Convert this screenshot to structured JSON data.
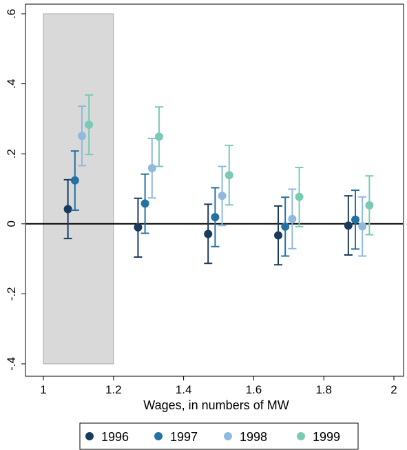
{
  "chart_data": {
    "type": "scatter",
    "title": "",
    "xlabel": "Wages, in numbers of MW",
    "ylabel": "",
    "xlim": [
      1,
      2
    ],
    "ylim": [
      -0.4,
      0.6
    ],
    "x_ticks": [
      "1",
      "1.2",
      "1.4",
      "1.6",
      "1.8",
      "2"
    ],
    "y_ticks": [
      "-.4",
      "-.2",
      "0",
      ".2",
      ".4",
      ".6"
    ],
    "shaded_region": {
      "x": [
        1,
        1.2
      ],
      "color": "#d9d9d9"
    },
    "reference_line": {
      "y": 0
    },
    "legend_position": "bottom",
    "error_bars": true,
    "series": [
      {
        "name": "1996",
        "color": "#1a3b5c",
        "points": [
          {
            "x": 1.07,
            "y": 0.042,
            "lo": -0.042,
            "hi": 0.126
          },
          {
            "x": 1.27,
            "y": -0.01,
            "lo": -0.095,
            "hi": 0.073
          },
          {
            "x": 1.47,
            "y": -0.029,
            "lo": -0.113,
            "hi": 0.056
          },
          {
            "x": 1.67,
            "y": -0.033,
            "lo": -0.117,
            "hi": 0.051
          },
          {
            "x": 1.87,
            "y": -0.005,
            "lo": -0.089,
            "hi": 0.08
          }
        ]
      },
      {
        "name": "1997",
        "color": "#2471a3",
        "points": [
          {
            "x": 1.09,
            "y": 0.124,
            "lo": 0.039,
            "hi": 0.208
          },
          {
            "x": 1.29,
            "y": 0.058,
            "lo": -0.027,
            "hi": 0.142
          },
          {
            "x": 1.49,
            "y": 0.019,
            "lo": -0.065,
            "hi": 0.103
          },
          {
            "x": 1.69,
            "y": -0.008,
            "lo": -0.092,
            "hi": 0.076
          },
          {
            "x": 1.89,
            "y": 0.012,
            "lo": -0.072,
            "hi": 0.096
          }
        ]
      },
      {
        "name": "1998",
        "color": "#8fb9de",
        "points": [
          {
            "x": 1.11,
            "y": 0.251,
            "lo": 0.166,
            "hi": 0.336
          },
          {
            "x": 1.31,
            "y": 0.159,
            "lo": 0.074,
            "hi": 0.244
          },
          {
            "x": 1.51,
            "y": 0.08,
            "lo": -0.005,
            "hi": 0.164
          },
          {
            "x": 1.71,
            "y": 0.014,
            "lo": -0.071,
            "hi": 0.099
          },
          {
            "x": 1.91,
            "y": -0.007,
            "lo": -0.092,
            "hi": 0.077
          }
        ]
      },
      {
        "name": "1999",
        "color": "#79cbb5",
        "points": [
          {
            "x": 1.13,
            "y": 0.283,
            "lo": 0.198,
            "hi": 0.368
          },
          {
            "x": 1.33,
            "y": 0.249,
            "lo": 0.164,
            "hi": 0.334
          },
          {
            "x": 1.53,
            "y": 0.139,
            "lo": 0.054,
            "hi": 0.224
          },
          {
            "x": 1.73,
            "y": 0.077,
            "lo": -0.008,
            "hi": 0.161
          },
          {
            "x": 1.93,
            "y": 0.053,
            "lo": -0.031,
            "hi": 0.137
          }
        ]
      }
    ]
  }
}
